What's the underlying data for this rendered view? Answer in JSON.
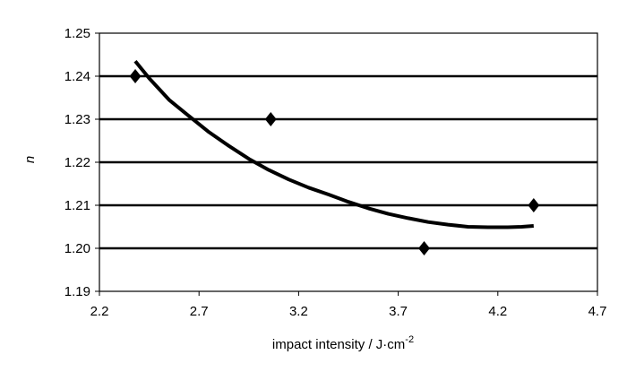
{
  "chart_data": {
    "type": "scatter",
    "title": "",
    "xlabel": "impact intensity / J·cm",
    "xlabel_superscript": "-2",
    "ylabel": "n",
    "xlim": [
      2.2,
      4.7
    ],
    "ylim": [
      1.19,
      1.25
    ],
    "x_ticks": [
      "2.2",
      "2.7",
      "3.2",
      "3.7",
      "4.2",
      "4.7"
    ],
    "y_ticks": [
      "1.19",
      "1.20",
      "1.21",
      "1.22",
      "1.23",
      "1.24",
      "1.25"
    ],
    "grid": "horizontal",
    "series": [
      {
        "type": "scatter",
        "marker": "diamond",
        "x": [
          2.38,
          3.06,
          3.83,
          4.38
        ],
        "y": [
          1.24,
          1.23,
          1.2,
          1.21
        ]
      },
      {
        "type": "line",
        "x": [
          2.38,
          2.45,
          2.55,
          2.65,
          2.75,
          2.85,
          2.95,
          3.05,
          3.15,
          3.25,
          3.35,
          3.45,
          3.55,
          3.65,
          3.75,
          3.85,
          3.95,
          4.05,
          4.15,
          4.25,
          4.32,
          4.38
        ],
        "y": [
          1.2435,
          1.2395,
          1.2345,
          1.2307,
          1.227,
          1.2238,
          1.2208,
          1.2182,
          1.216,
          1.2141,
          1.2125,
          1.2108,
          1.2093,
          1.208,
          1.207,
          1.2061,
          1.2055,
          1.205,
          1.2049,
          1.2049,
          1.205,
          1.2052
        ]
      }
    ],
    "colors": {
      "line": "#000000",
      "marker": "#000000",
      "grid": "#000000",
      "frame": "#000000"
    }
  }
}
